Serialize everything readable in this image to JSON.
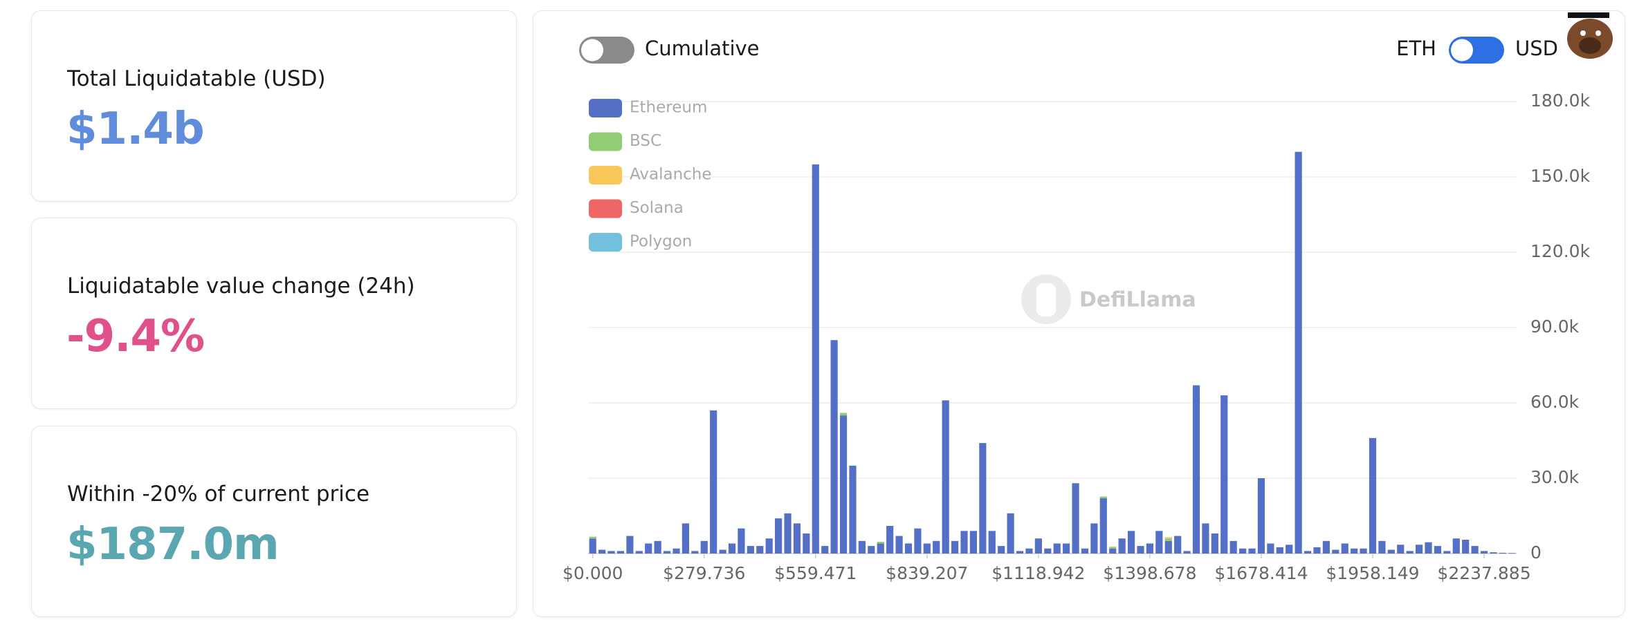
{
  "cards": [
    {
      "label": "Total Liquidatable (USD)",
      "value": "$1.4b"
    },
    {
      "label": "Liquidatable value change (24h)",
      "value": "-9.4%"
    },
    {
      "label": "Within -20% of current price",
      "value": "$187.0m"
    }
  ],
  "toggles": {
    "cumulative": "Cumulative",
    "left": "ETH",
    "right": "USD"
  },
  "watermark": "DefiLlama",
  "chart_data": {
    "type": "bar",
    "stacked": true,
    "categories": [
      "$0.000",
      null,
      null,
      null,
      null,
      null,
      null,
      null,
      null,
      null,
      null,
      null,
      "$279.736",
      null,
      null,
      null,
      null,
      null,
      null,
      null,
      null,
      null,
      null,
      null,
      "$559.471",
      null,
      null,
      null,
      null,
      null,
      null,
      null,
      null,
      null,
      null,
      null,
      "$839.207",
      null,
      null,
      null,
      null,
      null,
      null,
      null,
      null,
      null,
      null,
      null,
      "$1118.942",
      null,
      null,
      null,
      null,
      null,
      null,
      null,
      null,
      null,
      null,
      null,
      "$1398.678",
      null,
      null,
      null,
      null,
      null,
      null,
      null,
      null,
      null,
      null,
      null,
      "$1678.414",
      null,
      null,
      null,
      null,
      null,
      null,
      null,
      null,
      null,
      null,
      null,
      "$1958.149",
      null,
      null,
      null,
      null,
      null,
      null,
      null,
      null,
      null,
      null,
      null,
      "$2237.885",
      null,
      null,
      null
    ],
    "series": [
      {
        "name": "Ethereum",
        "color": "#5470c6",
        "values": [
          6000,
          1500,
          1000,
          1000,
          7000,
          1000,
          4000,
          5000,
          1000,
          2000,
          12000,
          1000,
          5000,
          57000,
          1500,
          4000,
          10000,
          3000,
          3000,
          6000,
          14000,
          16000,
          12000,
          8000,
          155000,
          3000,
          85000,
          55000,
          35000,
          5000,
          3000,
          4000,
          11000,
          7000,
          4000,
          10000,
          4000,
          5000,
          61000,
          5000,
          9000,
          9000,
          44000,
          9000,
          3000,
          16000,
          1000,
          2000,
          6000,
          2000,
          4000,
          4000,
          28000,
          2000,
          12000,
          22000,
          2000,
          6000,
          9000,
          3000,
          4000,
          9000,
          5000,
          7000,
          1000,
          67000,
          12000,
          8000,
          63000,
          5000,
          2000,
          2000,
          30000,
          4000,
          2500,
          3500,
          160000,
          1000,
          2500,
          5000,
          1500,
          4000,
          2000,
          2000,
          46000,
          5000,
          1500,
          3500,
          1000,
          3500,
          4500,
          3000,
          1000,
          6000,
          5500,
          3000,
          1000,
          500,
          300,
          200
        ]
      },
      {
        "name": "BSC",
        "color": "#91cc75",
        "values": [
          700,
          0,
          0,
          0,
          0,
          0,
          0,
          0,
          0,
          0,
          0,
          0,
          0,
          0,
          0,
          0,
          0,
          0,
          0,
          0,
          0,
          0,
          0,
          0,
          0,
          0,
          0,
          1000,
          0,
          0,
          0,
          700,
          0,
          0,
          0,
          0,
          0,
          0,
          0,
          0,
          0,
          0,
          0,
          0,
          0,
          0,
          0,
          0,
          0,
          0,
          0,
          0,
          0,
          0,
          0,
          700,
          700,
          0,
          0,
          0,
          0,
          0,
          1000,
          0,
          0,
          0,
          0,
          0,
          0,
          0,
          0,
          0,
          0,
          0,
          0,
          0,
          0,
          0,
          0,
          0,
          0,
          0,
          0,
          0,
          0,
          0,
          0,
          0,
          0,
          0,
          0,
          0,
          0,
          0,
          0,
          0,
          0,
          0,
          0,
          0
        ]
      },
      {
        "name": "Avalanche",
        "color": "#fac858",
        "values": [
          0,
          0,
          0,
          0,
          0,
          0,
          0,
          0,
          0,
          0,
          0,
          0,
          0,
          0,
          0,
          0,
          0,
          0,
          0,
          0,
          0,
          0,
          0,
          0,
          0,
          0,
          0,
          0,
          0,
          0,
          0,
          0,
          0,
          0,
          0,
          0,
          0,
          0,
          0,
          0,
          0,
          0,
          0,
          0,
          0,
          0,
          0,
          0,
          0,
          0,
          0,
          0,
          0,
          0,
          0,
          0,
          0,
          0,
          0,
          0,
          0,
          0,
          500,
          0,
          0,
          0,
          0,
          0,
          0,
          0,
          0,
          0,
          0,
          0,
          0,
          0,
          0,
          0,
          0,
          0,
          0,
          0,
          0,
          0,
          0,
          0,
          0,
          0,
          0,
          0,
          0,
          0,
          0,
          0,
          0,
          0,
          0,
          0,
          0,
          0
        ]
      },
      {
        "name": "Solana",
        "color": "#ee6666",
        "values": [
          0,
          0,
          0,
          0,
          0,
          0,
          0,
          0,
          0,
          0,
          0,
          0,
          0,
          0,
          0,
          0,
          0,
          0,
          0,
          0,
          0,
          0,
          0,
          0,
          0,
          0,
          0,
          0,
          0,
          0,
          0,
          0,
          0,
          0,
          0,
          0,
          0,
          0,
          0,
          0,
          0,
          0,
          0,
          0,
          0,
          0,
          0,
          0,
          0,
          0,
          0,
          0,
          0,
          0,
          0,
          0,
          0,
          0,
          0,
          0,
          0,
          0,
          0,
          0,
          0,
          0,
          0,
          0,
          0,
          0,
          0,
          0,
          0,
          0,
          0,
          0,
          0,
          0,
          0,
          0,
          0,
          0,
          0,
          0,
          0,
          0,
          0,
          0,
          0,
          0,
          0,
          0,
          0,
          0,
          0,
          0,
          0,
          0,
          0,
          0
        ]
      },
      {
        "name": "Polygon",
        "color": "#73c0de",
        "values": [
          0,
          0,
          0,
          0,
          0,
          0,
          0,
          0,
          0,
          0,
          0,
          0,
          0,
          0,
          0,
          0,
          0,
          0,
          0,
          0,
          0,
          0,
          0,
          0,
          0,
          0,
          0,
          0,
          0,
          0,
          0,
          0,
          0,
          0,
          0,
          0,
          0,
          0,
          0,
          0,
          0,
          0,
          0,
          0,
          0,
          0,
          0,
          0,
          0,
          0,
          0,
          0,
          0,
          0,
          0,
          0,
          0,
          0,
          0,
          0,
          0,
          0,
          0,
          0,
          0,
          0,
          0,
          0,
          0,
          0,
          0,
          0,
          0,
          0,
          0,
          0,
          0,
          0,
          0,
          0,
          0,
          0,
          0,
          0,
          0,
          0,
          0,
          0,
          0,
          0,
          0,
          0,
          0,
          0,
          0,
          0,
          0,
          0,
          0,
          0
        ]
      }
    ],
    "ylim": [
      0,
      180000
    ],
    "yticks": [
      0,
      {
        "value": 30000,
        "label": "30.0k"
      },
      {
        "value": 60000,
        "label": "60.0k"
      },
      {
        "value": 90000,
        "label": "90.0k"
      },
      {
        "value": 120000,
        "label": "120.0k"
      },
      {
        "value": 150000,
        "label": "150.0k"
      },
      {
        "value": 180000,
        "label": "180.0k"
      }
    ],
    "grid": true,
    "legend": "top-left"
  }
}
